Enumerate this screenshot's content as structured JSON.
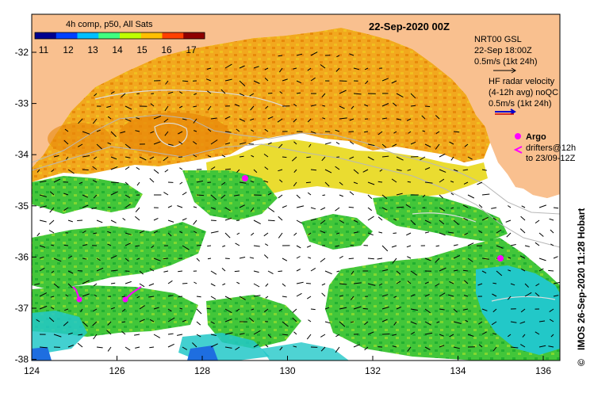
{
  "map": {
    "colorbar_title": "4h comp, p50, All Sats",
    "colorbar_labels": [
      "11",
      "12",
      "13",
      "14",
      "15",
      "16",
      "17"
    ],
    "colorbar_colors": [
      "#00008f",
      "#0040ff",
      "#00bfff",
      "#40ff80",
      "#bfff00",
      "#ffbf00",
      "#ff4000",
      "#8f0000"
    ],
    "date_label": "22-Sep-2020 00Z",
    "nrt_label": "NRT00 GSL",
    "nrt_time": "22-Sep 18:00Z",
    "nrt_scale": "0.5m/s (1kt 24h)",
    "hf_radar_line1": "HF radar velocity",
    "hf_radar_line2": "(4-12h avg) noQC",
    "hf_radar_scale": "0.5m/s (1kt 24h)",
    "argo_label": "Argo",
    "drifters_line1": "drifters@12h",
    "drifters_line2": "to 23/09-12Z",
    "credit": "IMOS 26-Sep-2020 11:28 Hobart",
    "copyright_symbol": "©",
    "y_ticks": [
      "-32",
      "-33",
      "-34",
      "-35",
      "-36",
      "-37",
      "-38"
    ],
    "x_ticks": [
      "124",
      "126",
      "128",
      "130",
      "132",
      "134",
      "136"
    ],
    "colors": {
      "land": "#f9c08f",
      "warm": "#f2a81e",
      "warm_dark": "#e8880a",
      "yellow": "#e8d81a",
      "green": "#3cc83c",
      "cyan": "#22c8c8",
      "argo": "#ff00ff"
    }
  }
}
